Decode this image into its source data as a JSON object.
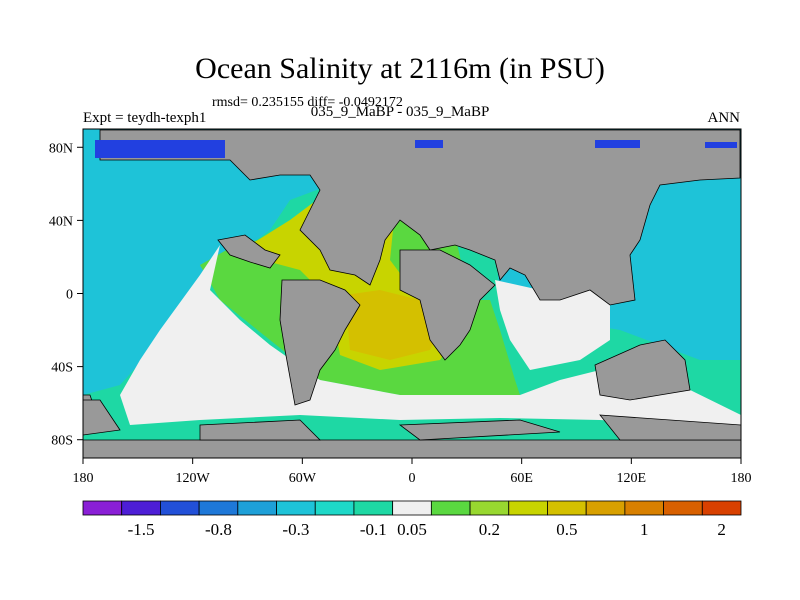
{
  "title": "Ocean Salinity at 2116m (in PSU)",
  "stats": "rmsd= 0.235155  diff= -0.0492172",
  "left_label": "Expt = teydh-texph1",
  "center_label": "035_9_MaBP - 035_9_MaBP",
  "right_label": "ANN",
  "axes": {
    "lon_ticks": [
      {
        "value": -180,
        "label": "180"
      },
      {
        "value": -120,
        "label": "120W"
      },
      {
        "value": -60,
        "label": "60W"
      },
      {
        "value": 0,
        "label": "0"
      },
      {
        "value": 60,
        "label": "60E"
      },
      {
        "value": 120,
        "label": "120E"
      },
      {
        "value": 180,
        "label": "180"
      }
    ],
    "lat_ticks": [
      {
        "value": 80,
        "label": "80N"
      },
      {
        "value": 40,
        "label": "40N"
      },
      {
        "value": 0,
        "label": "0"
      },
      {
        "value": -40,
        "label": "40S"
      },
      {
        "value": -80,
        "label": "80S"
      }
    ],
    "lon_range": [
      -180,
      180
    ],
    "lat_range": [
      -90,
      90
    ]
  },
  "colorbar": {
    "colors": [
      "#8a1fd6",
      "#4d1ed6",
      "#2250d8",
      "#1e78d8",
      "#1ea0d8",
      "#1ec3d8",
      "#1ed8c8",
      "#1ed8a4",
      "#f0f0f0",
      "#5ad840",
      "#98d830",
      "#c8d400",
      "#d4c000",
      "#d8a000",
      "#d88000",
      "#d86000",
      "#d84000"
    ],
    "labels": [
      "-1.5",
      "-0.8",
      "-0.3",
      "-0.1",
      "0.05",
      "0.2",
      "0.5",
      "1",
      "2"
    ]
  },
  "map_colors": {
    "land": "#999999",
    "cyan": "#1ec3d8",
    "teal": "#1ed8a4",
    "green": "#5ad840",
    "lightgreen": "#98d830",
    "yellow": "#c8d400",
    "gold": "#d4c000",
    "white": "#f0f0f0",
    "blue": "#2240e0"
  }
}
